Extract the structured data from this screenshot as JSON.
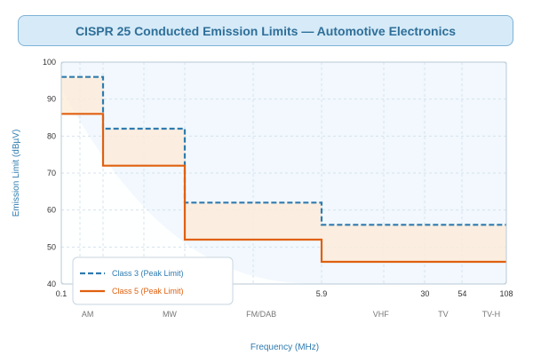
{
  "chart_data": {
    "type": "line",
    "title": "CISPR 25 Conducted Emission Limits — Automotive Electronics",
    "xlabel": "Frequency (MHz)",
    "ylabel": "Emission Limit (dBµV)",
    "ylim": [
      40,
      100
    ],
    "y_ticks": [
      40,
      50,
      60,
      70,
      80,
      90,
      100
    ],
    "x_ticks": [
      {
        "value": 0.1,
        "label": "0.1"
      },
      {
        "value": 5.9,
        "label": "5.9"
      },
      {
        "value": 30,
        "label": "30"
      },
      {
        "value": 54,
        "label": "54"
      },
      {
        "value": 108,
        "label": "108"
      }
    ],
    "bands": [
      {
        "label": "AM",
        "x": 0.2
      },
      {
        "label": "MW",
        "x": 0.8
      },
      {
        "label": "FM/DAB",
        "x": 2.7
      },
      {
        "label": "VHF",
        "x": 15
      },
      {
        "label": "TV",
        "x": 40
      },
      {
        "label": "TV-H",
        "x": 85
      }
    ],
    "x_breaks": [
      0.1,
      0.3,
      1.0,
      5.9,
      108
    ],
    "grid": true,
    "legend_position": "bottom-left",
    "series": [
      {
        "name": "Class 3 (Peak Limit)",
        "color": "#2e7bb0",
        "style": "dashed",
        "steps": [
          {
            "x0": 0.1,
            "x1": 0.3,
            "y": 96
          },
          {
            "x0": 0.3,
            "x1": 1.0,
            "y": 82
          },
          {
            "x0": 1.0,
            "x1": 5.9,
            "y": 62
          },
          {
            "x0": 5.9,
            "x1": 108,
            "y": 56
          }
        ]
      },
      {
        "name": "Class 5 (Peak Limit)",
        "color": "#e06010",
        "style": "solid",
        "steps": [
          {
            "x0": 0.1,
            "x1": 0.3,
            "y": 86
          },
          {
            "x0": 0.3,
            "x1": 1.0,
            "y": 72
          },
          {
            "x0": 1.0,
            "x1": 5.9,
            "y": 52
          },
          {
            "x0": 5.9,
            "x1": 108,
            "y": 46
          }
        ]
      }
    ]
  }
}
